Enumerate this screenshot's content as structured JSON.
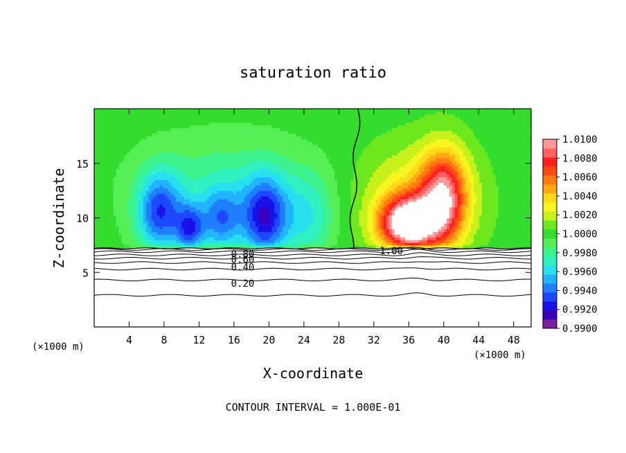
{
  "chart_data": {
    "type": "heatmap",
    "title": "saturation ratio",
    "xlabel": "X-coordinate",
    "ylabel": "Z-coordinate",
    "x_unit_left": "(×1000 m)",
    "x_unit_right": "(×1000 m)",
    "footer": "CONTOUR INTERVAL = 1.000E-01",
    "xlim": [
      0,
      50
    ],
    "ylim": [
      0,
      20
    ],
    "x_ticks": [
      4,
      8,
      12,
      16,
      20,
      24,
      28,
      32,
      36,
      40,
      44,
      48
    ],
    "y_ticks": [
      5,
      10,
      15
    ],
    "colorbar": {
      "labels": [
        "1.0100",
        "1.0080",
        "1.0060",
        "1.0040",
        "1.0020",
        "1.0000",
        "0.9980",
        "0.9960",
        "0.9940",
        "0.9920",
        "0.9900"
      ],
      "min": 0.99,
      "max": 1.01,
      "colors": [
        "#7b1fa2",
        "#3a00b8",
        "#1a10e8",
        "#1c48ff",
        "#1f7fff",
        "#22b4ff",
        "#27e0ee",
        "#2ff0c0",
        "#3cf08a",
        "#55ee55",
        "#34dc2e",
        "#6ee81e",
        "#c8f01a",
        "#f5f520",
        "#ffd81a",
        "#ffaa12",
        "#ff7a10",
        "#ff4a12",
        "#ff2020",
        "#ff6060",
        "#ff9a9a"
      ]
    },
    "contour_labels": [
      {
        "text": "1.00",
        "x": 34,
        "z": 7.0
      },
      {
        "text": "0.80",
        "x": 17,
        "z": 6.7
      },
      {
        "text": "0.60",
        "x": 17,
        "z": 6.2
      },
      {
        "text": "0.40",
        "x": 17,
        "z": 5.5
      },
      {
        "text": "0.20",
        "x": 17,
        "z": 4.0
      }
    ],
    "lower_contours_z": [
      2.9,
      4.3,
      5.3,
      5.9,
      6.3,
      6.6,
      6.9,
      7.1
    ],
    "cloud_base_z": 7.2,
    "zero_line_x": 29.7,
    "fields": [
      {
        "name": "subsaturated-core",
        "cx": 7.5,
        "cz": 10.5,
        "amp": -0.0062,
        "sx": 2.6,
        "sz": 3.6
      },
      {
        "name": "subsaturated-core",
        "cx": 11.0,
        "cz": 9.0,
        "amp": -0.0055,
        "sx": 1.6,
        "sz": 2.2
      },
      {
        "name": "subsaturated-core",
        "cx": 14.5,
        "cz": 9.8,
        "amp": -0.0045,
        "sx": 2.2,
        "sz": 3.0
      },
      {
        "name": "subsaturated-core",
        "cx": 19.5,
        "cz": 10.0,
        "amp": -0.0068,
        "sx": 2.6,
        "sz": 3.8
      },
      {
        "name": "subsaturated-core",
        "cx": 24.5,
        "cz": 10.0,
        "amp": -0.0028,
        "sx": 3.0,
        "sz": 4.0
      },
      {
        "name": "subsaturated-bg",
        "cx": 15.0,
        "cz": 12.5,
        "amp": -0.0022,
        "sx": 10.0,
        "sz": 5.0
      },
      {
        "name": "supersaturated-core",
        "cx": 36.0,
        "cz": 9.5,
        "amp": 0.011,
        "sx": 3.2,
        "sz": 2.4
      },
      {
        "name": "supersaturated-core",
        "cx": 40.0,
        "cz": 12.0,
        "amp": 0.0078,
        "sx": 2.6,
        "sz": 4.2
      },
      {
        "name": "supersaturated-bg",
        "cx": 37.0,
        "cz": 11.5,
        "amp": 0.0035,
        "sx": 6.5,
        "sz": 5.0
      }
    ]
  }
}
